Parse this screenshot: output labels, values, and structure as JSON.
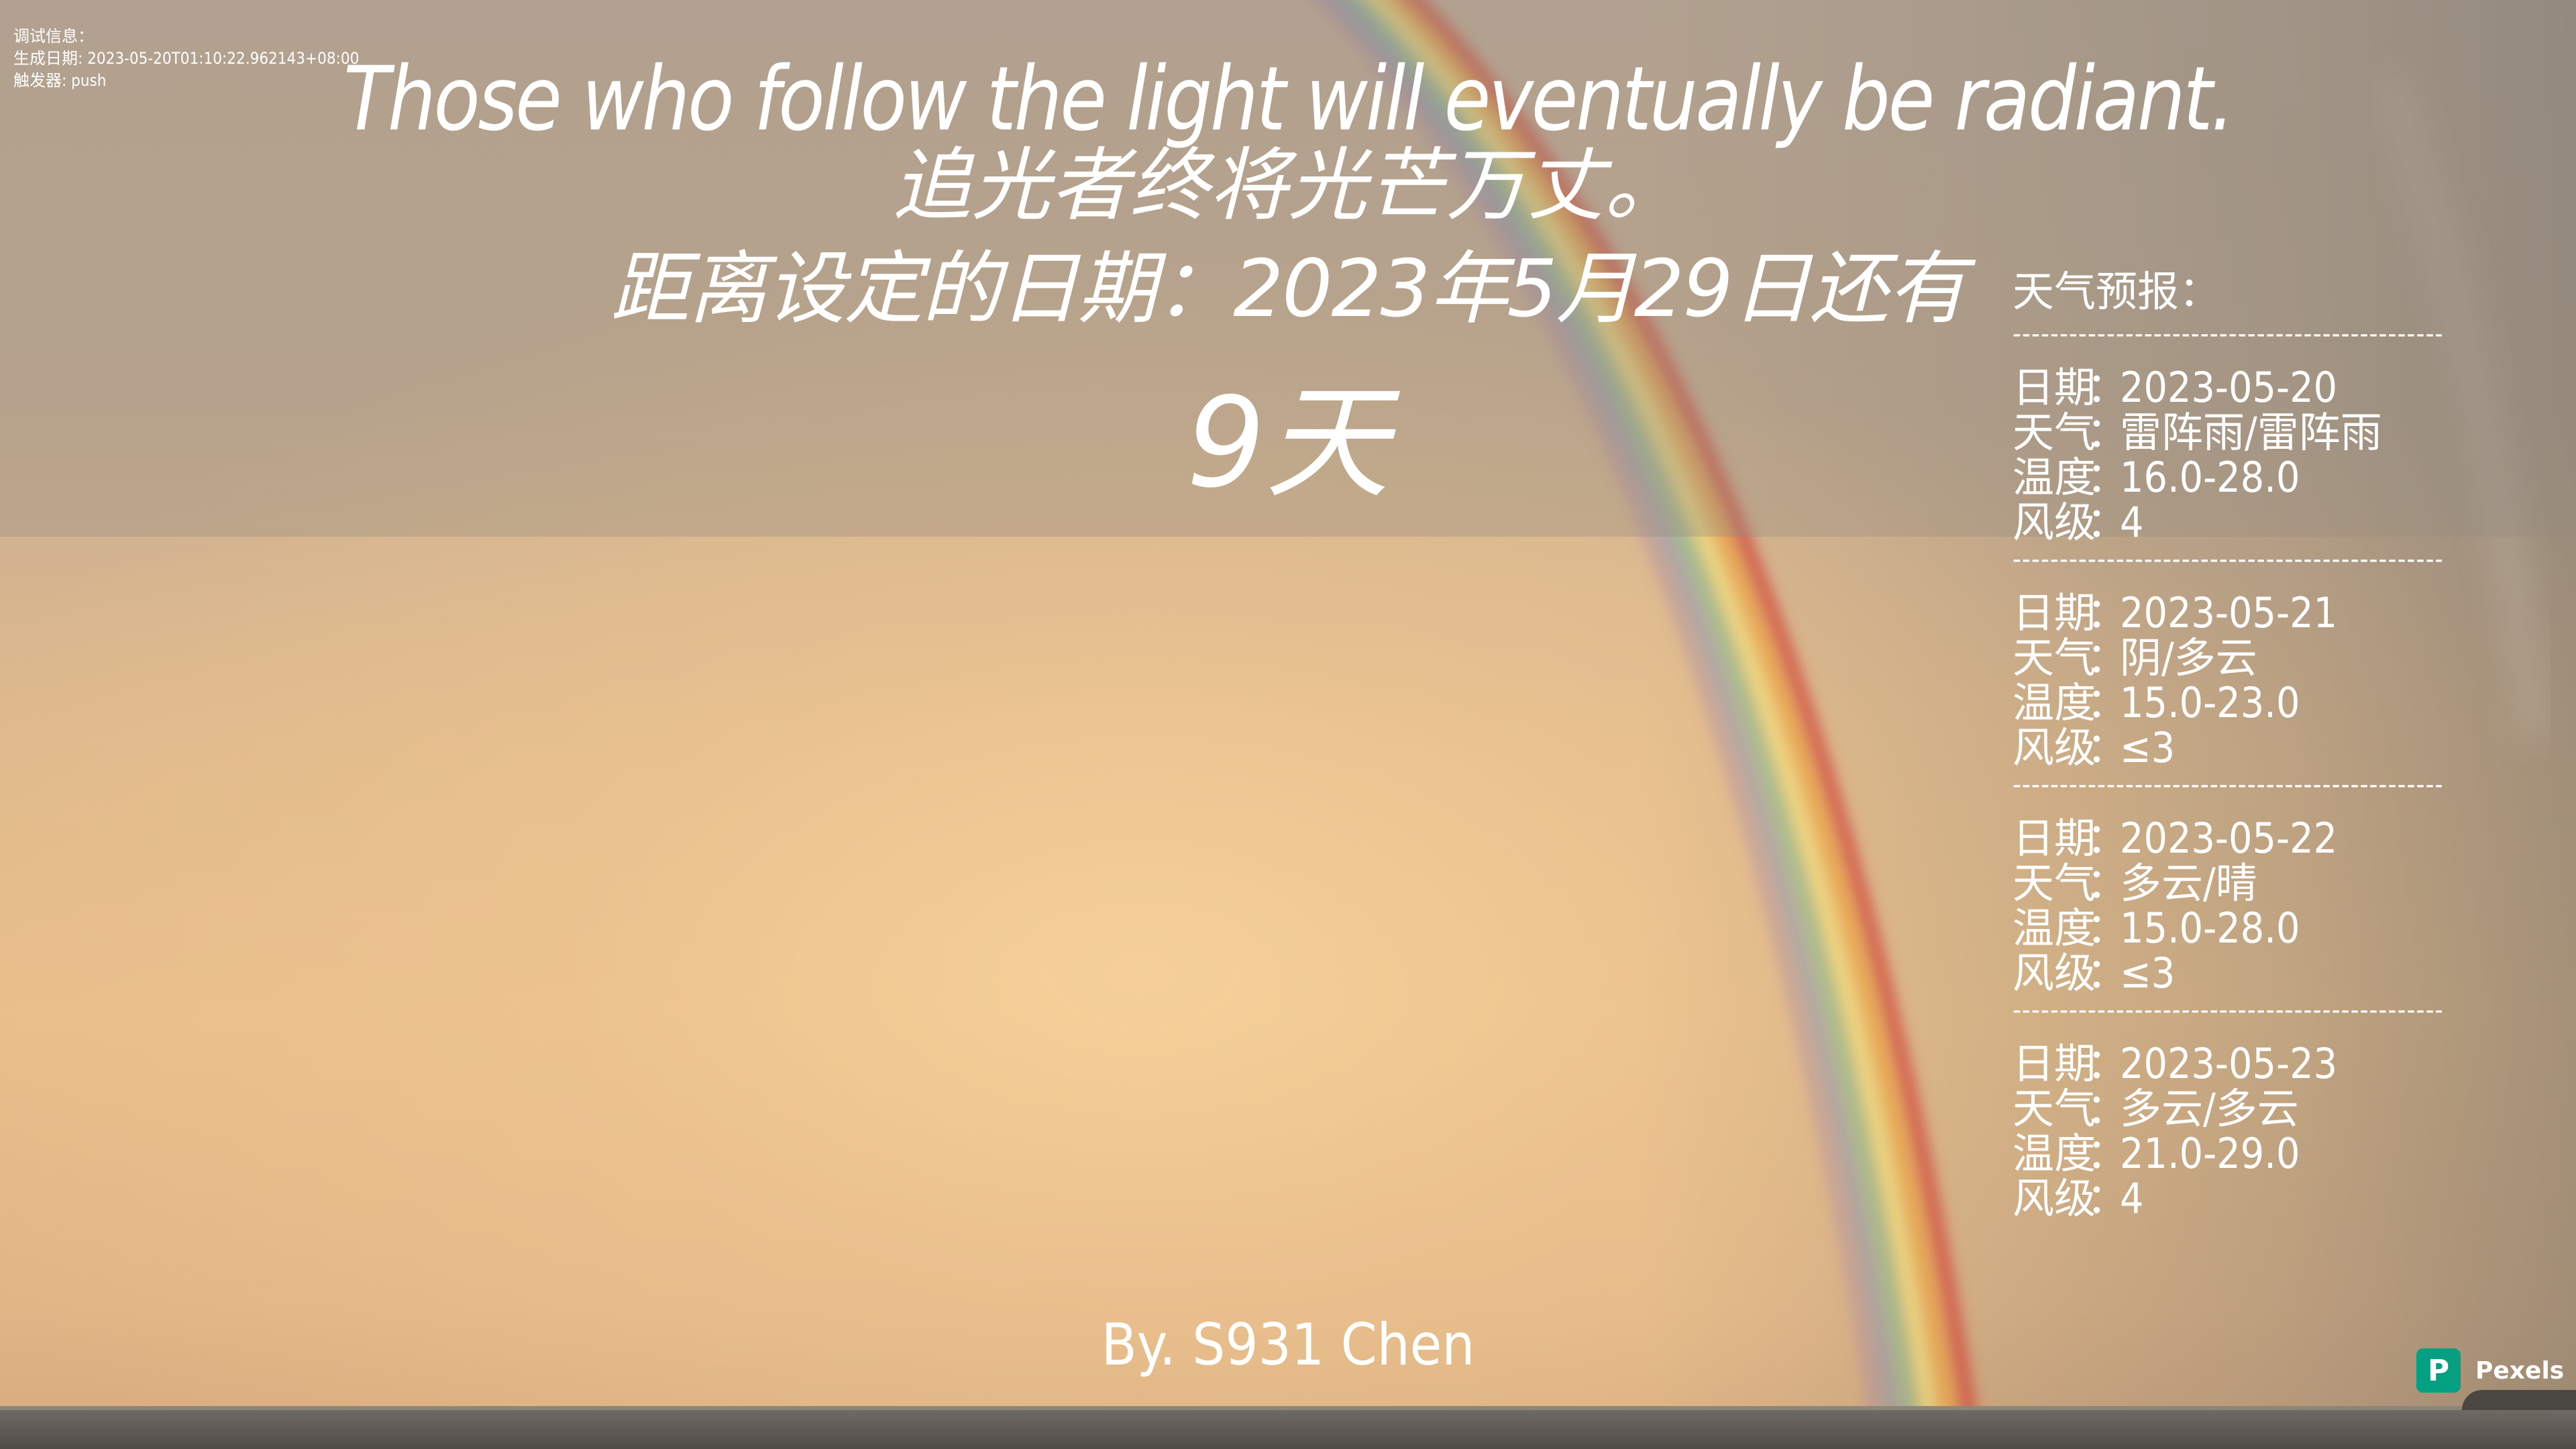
{
  "debug": {
    "title": "调试信息：",
    "generated": "生成日期: 2023-05-20T01:10:22.962143+08:00",
    "trigger": "触发器: push"
  },
  "quote": {
    "en": "Those who follow the light will eventually be radiant.",
    "zh": "追光者终将光芒万丈。"
  },
  "countdown": {
    "target_line": "距离设定的日期：2023年5月29日还有",
    "days_left": "9天"
  },
  "weather": {
    "title": "天气预报：",
    "divider": "---------------------------------------------------",
    "labels": {
      "date": "日期",
      "weather": "天气",
      "temp": "温度",
      "wind": "风级",
      "separator": "："
    },
    "days": [
      {
        "date": "2023-05-20",
        "weather": "雷阵雨/雷阵雨",
        "temp": "16.0-28.0",
        "wind": "4"
      },
      {
        "date": "2023-05-21",
        "weather": "阴/多云",
        "temp": "15.0-23.0",
        "wind": "≤3"
      },
      {
        "date": "2023-05-22",
        "weather": "多云/晴",
        "temp": "15.0-28.0",
        "wind": "≤3"
      },
      {
        "date": "2023-05-23",
        "weather": "多云/多云",
        "temp": "21.0-29.0",
        "wind": "4"
      }
    ]
  },
  "signature": "By. S931 Chen",
  "photo_credit": {
    "logo_glyph": "P",
    "label": "Pexels",
    "color": "#05a081"
  }
}
